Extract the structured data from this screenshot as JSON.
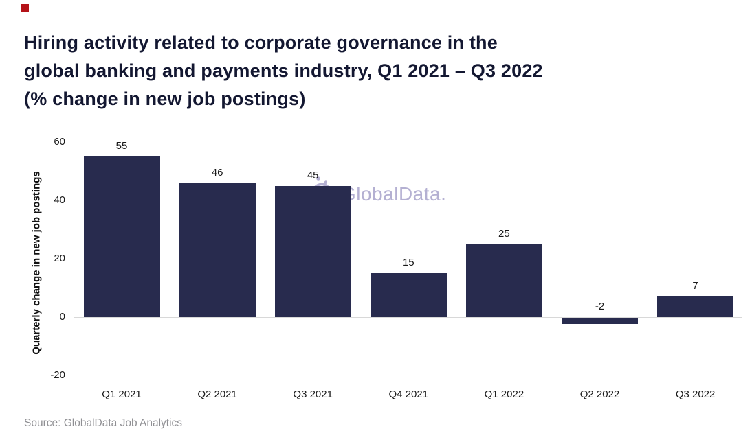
{
  "header": {
    "title_lines": [
      "Hiring activity related to corporate governance in the",
      "global banking and payments industry, Q1 2021 – Q3 2022",
      "(% change in new job postings)"
    ]
  },
  "watermark": {
    "text": "GlobalData.",
    "icon": "globaldata-logo-icon"
  },
  "footer": {
    "source": "Source: GlobalData Job Analytics"
  },
  "colors": {
    "bar": "#282b4e",
    "title_text": "#131731",
    "label_text": "#1a1a1a",
    "watermark": "#b4b0d2",
    "zero_line": "#d8d8d8",
    "source_text": "#8f8f93",
    "red_square": "#b41218"
  },
  "chart_data": {
    "type": "bar",
    "title": "Hiring activity related to corporate governance in the global banking and payments industry, Q1 2021 – Q3 2022 (% change in new job postings)",
    "categories": [
      "Q1 2021",
      "Q2 2021",
      "Q3 2021",
      "Q4 2021",
      "Q1 2022",
      "Q2 2022",
      "Q3 2022"
    ],
    "values": [
      55,
      46,
      45,
      15,
      25,
      -2,
      7
    ],
    "ylabel": "Quarterly change in new job postings",
    "xlabel": "",
    "yticks": [
      60,
      40,
      20,
      0,
      -20
    ],
    "ylim": [
      -20,
      60
    ],
    "grid": false,
    "legend": "none",
    "bar_color": "#282b4e"
  }
}
